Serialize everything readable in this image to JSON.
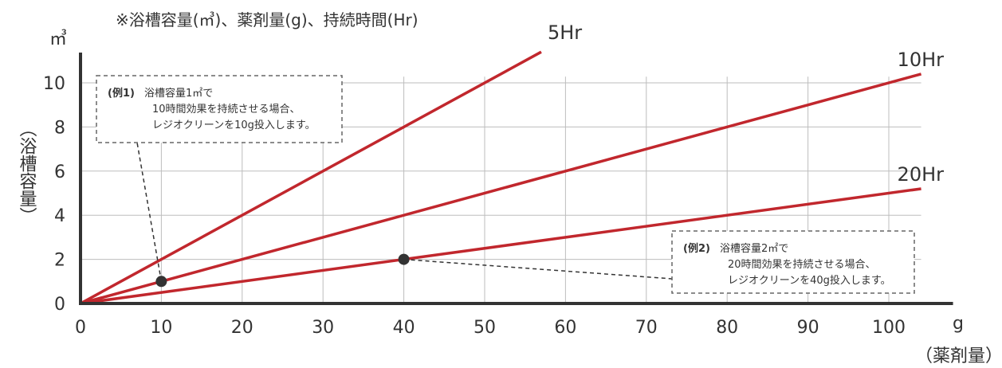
{
  "chart_data": {
    "type": "line",
    "title": "※浴槽容量(㎥)、薬剤量(g)、持続時間(Hr)",
    "y_unit": "㎥",
    "x_unit": "g",
    "ylabel": "（浴槽容量）",
    "xlabel": "（薬剤量）",
    "x_ticks": [
      0,
      10,
      20,
      30,
      40,
      50,
      60,
      70,
      80,
      90,
      100
    ],
    "y_ticks": [
      0,
      2,
      4,
      6,
      8,
      10
    ],
    "xlim": [
      0,
      104
    ],
    "ylim": [
      0,
      11
    ],
    "grid": true,
    "colors": {
      "line": "#c1272d",
      "axis": "#333333",
      "grid": "#bdbdbd"
    },
    "series": [
      {
        "name": "5Hr",
        "slope": 0.2,
        "x": [
          0,
          57
        ],
        "y": [
          0,
          11.4
        ]
      },
      {
        "name": "10Hr",
        "slope": 0.1,
        "x": [
          0,
          104
        ],
        "y": [
          0,
          10.4
        ]
      },
      {
        "name": "20Hr",
        "slope": 0.05,
        "x": [
          0,
          104
        ],
        "y": [
          0,
          5.2
        ]
      }
    ],
    "annotations": [
      {
        "point": {
          "x": 10,
          "y": 1
        },
        "label": "(例1)",
        "lines": [
          "浴槽容量1㎡で",
          "10時間効果を持続させる場合、",
          "レジオクリーンを10g投入します。"
        ]
      },
      {
        "point": {
          "x": 40,
          "y": 2
        },
        "label": "(例2)",
        "lines": [
          "浴槽容量2㎡で",
          "20時間効果を持続させる場合、",
          "レジオクリーンを40g投入します。"
        ]
      }
    ]
  }
}
